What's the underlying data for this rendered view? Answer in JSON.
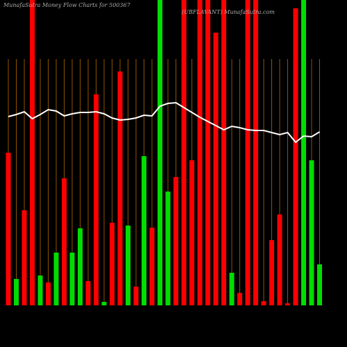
{
  "chart_data": {
    "type": "bar",
    "title": "MunafaSutra  Money Flow  Charts for 500367",
    "subtitle": "(UBFLAVANT) MunafaSutra.com",
    "categories": [
      null,
      null,
      null,
      null,
      null,
      null,
      null,
      null,
      null,
      null,
      null,
      null,
      null,
      null,
      null,
      null,
      null,
      null,
      null,
      null,
      null,
      null,
      null,
      null,
      null,
      null,
      null,
      null,
      null,
      null,
      null,
      null,
      null,
      null,
      null,
      null,
      null,
      null,
      null,
      null
    ],
    "values": [
      220,
      38,
      137,
      440,
      43,
      33,
      76,
      183,
      76,
      111,
      35,
      304,
      5,
      119,
      337,
      115,
      27,
      215,
      112,
      440,
      164,
      185,
      440,
      209,
      440,
      440,
      393,
      440,
      47,
      18,
      440,
      440,
      6,
      94,
      131,
      3,
      428,
      440,
      209,
      59
    ],
    "colors": [
      "#ff0000",
      "#00dd00",
      "#ff0000",
      "#ff0000",
      "#00dd00",
      "#ff0000",
      "#00dd00",
      "#ff0000",
      "#00dd00",
      "#00dd00",
      "#ff0000",
      "#ff0000",
      "#00dd00",
      "#ff0000",
      "#ff0000",
      "#00dd00",
      "#ff0000",
      "#00dd00",
      "#ff0000",
      "#00dd00",
      "#00dd00",
      "#ff0000",
      "#ff0000",
      "#ff0000",
      "#ff0000",
      "#ff0000",
      "#ff0000",
      "#ff0000",
      "#00dd00",
      "#ff0000",
      "#ff0000",
      "#ff0000",
      "#ff0000",
      "#ff0000",
      "#ff0000",
      "#ff0000",
      "#ff0000",
      "#00dd00",
      "#00dd00",
      "#00dd00"
    ],
    "line_values": [
      272,
      275,
      279,
      269,
      275,
      282,
      280,
      273,
      276,
      278,
      278,
      279,
      276,
      270,
      267,
      268,
      270,
      274,
      273,
      287,
      291,
      292,
      285,
      278,
      271,
      265,
      259,
      253,
      258,
      256,
      253,
      252,
      252,
      249,
      246,
      249,
      235,
      244,
      243,
      250
    ],
    "line_color": "#ffffff",
    "grid_color": "#b36b00",
    "ylim": [
      0,
      440
    ]
  }
}
